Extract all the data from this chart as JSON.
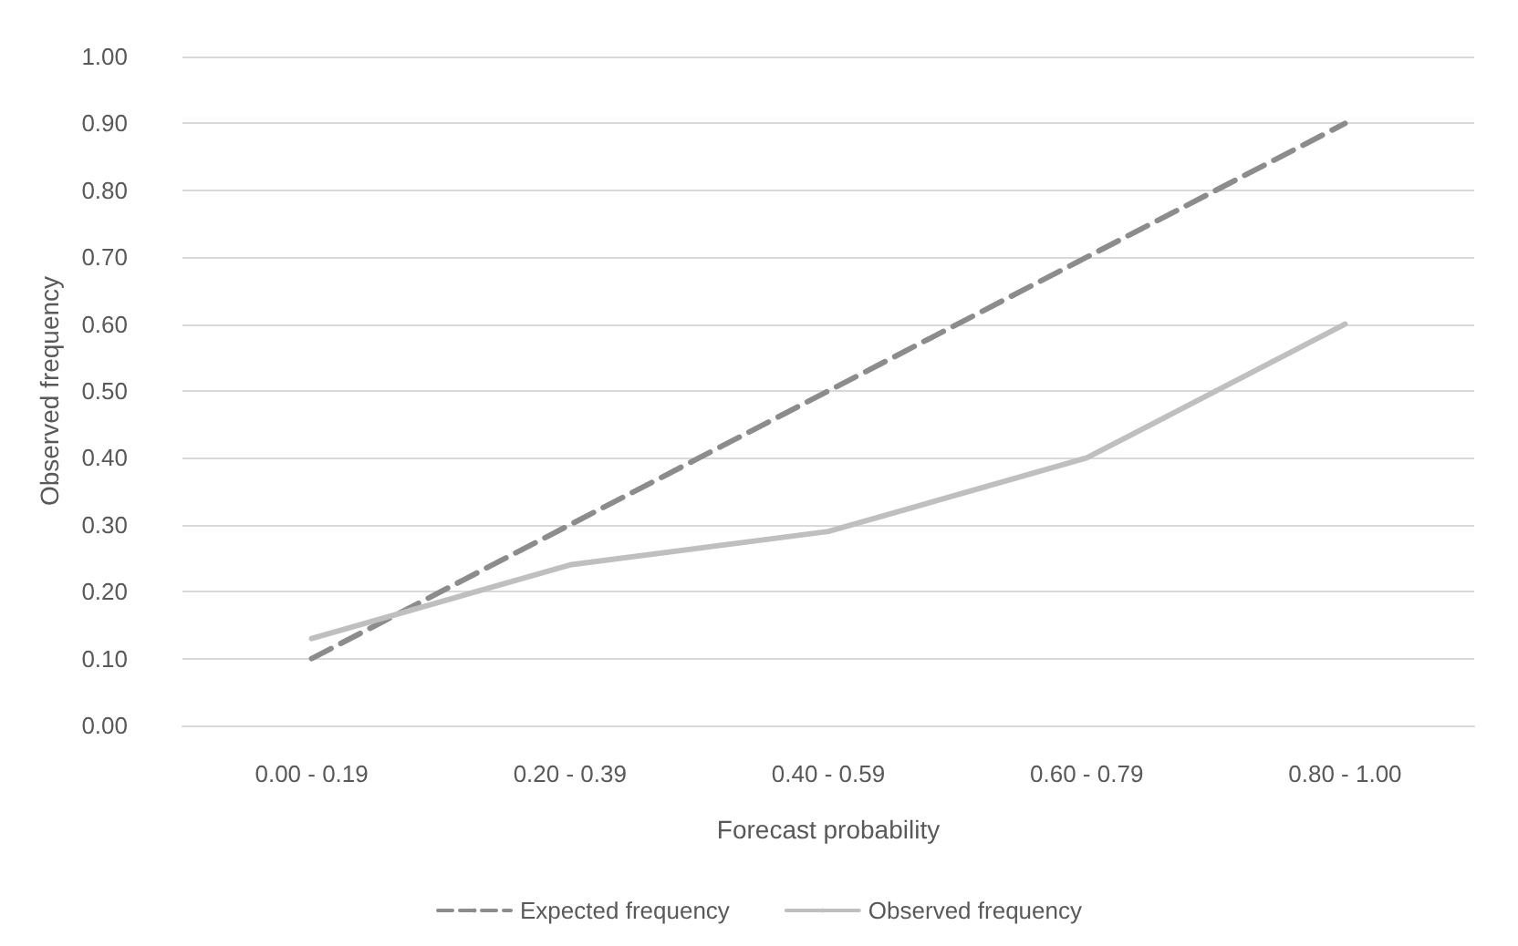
{
  "chart_data": {
    "type": "line",
    "xlabel": "Forecast probability",
    "ylabel": "Observed frequency",
    "categories": [
      "0.00 - 0.19",
      "0.20 - 0.39",
      "0.40 - 0.59",
      "0.60 - 0.79",
      "0.80 - 1.00"
    ],
    "series": [
      {
        "name": "Expected frequency",
        "color": "#8c8c8c",
        "line_style": "dashed",
        "values": [
          0.1,
          0.3,
          0.5,
          0.7,
          0.9
        ]
      },
      {
        "name": "Observed frequency",
        "color": "#bfbfbf",
        "line_style": "solid",
        "values": [
          0.13,
          0.24,
          0.29,
          0.4,
          0.6
        ]
      }
    ],
    "ylim": [
      0,
      1
    ],
    "yticks": [
      {
        "value": 0,
        "label": "0.00"
      },
      {
        "value": 0.1,
        "label": "0.10"
      },
      {
        "value": 0.2,
        "label": "0.20"
      },
      {
        "value": 0.3,
        "label": "0.30"
      },
      {
        "value": 0.4,
        "label": "0.40"
      },
      {
        "value": 0.5,
        "label": "0.50"
      },
      {
        "value": 0.6,
        "label": "0.60"
      },
      {
        "value": 0.7,
        "label": "0.70"
      },
      {
        "value": 0.8,
        "label": "0.80"
      },
      {
        "value": 0.9,
        "label": "0.90"
      },
      {
        "value": 1,
        "label": "1.00"
      }
    ],
    "grid": "y",
    "legend": "bottom",
    "marker": "none"
  }
}
